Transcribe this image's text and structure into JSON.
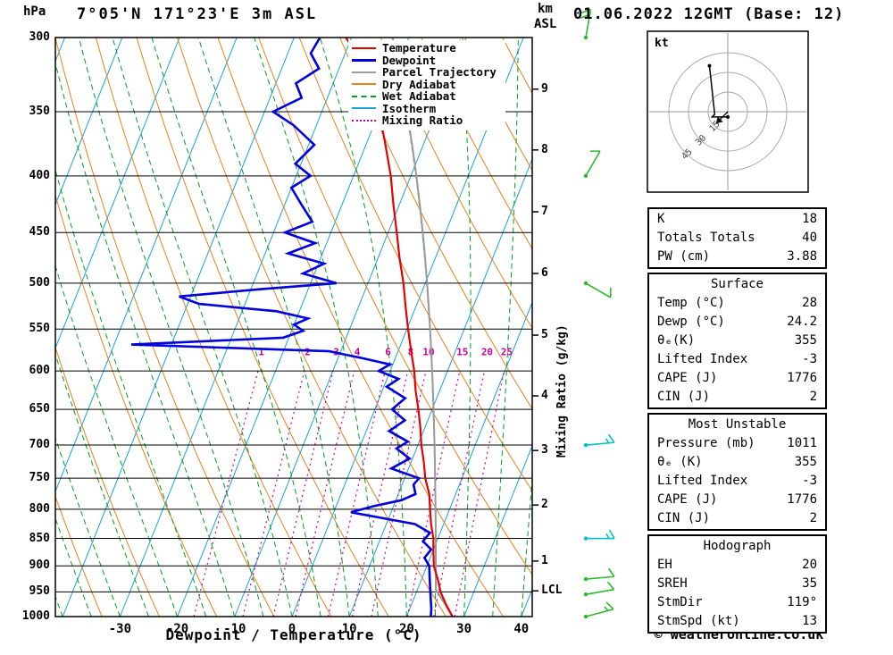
{
  "header": {
    "station_title": "7°05'N 171°23'E 3m ASL",
    "datetime_title": "01.06.2022 12GMT (Base: 12)",
    "pressure_unit": "hPa",
    "km_label": "km",
    "asl_label": "ASL"
  },
  "axes": {
    "xlabel": "Dewpoint / Temperature (°C)",
    "right_axis_label": "Mixing Ratio (g/kg)",
    "pressure_ticks": [
      300,
      350,
      400,
      450,
      500,
      550,
      600,
      650,
      700,
      750,
      800,
      850,
      900,
      950,
      1000
    ],
    "temp_ticks": [
      -30,
      -20,
      -10,
      0,
      10,
      20,
      30,
      40
    ],
    "km_ticks": [
      {
        "label": "9",
        "p": 334
      },
      {
        "label": "8",
        "p": 379
      },
      {
        "label": "7",
        "p": 431
      },
      {
        "label": "6",
        "p": 490
      },
      {
        "label": "5",
        "p": 557
      },
      {
        "label": "4",
        "p": 632
      },
      {
        "label": "3",
        "p": 708
      },
      {
        "label": "2",
        "p": 793
      },
      {
        "label": "1",
        "p": 891
      },
      {
        "label": "LCL",
        "p": 948
      }
    ]
  },
  "colors": {
    "temperature": "#e60000",
    "dewpoint": "#0000dd",
    "parcel": "#9a9a9a",
    "dry_adiabat": "#e8821e",
    "wet_adiabat": "#00a020",
    "isotherm": "#1aa3d9",
    "mixing_ratio": "#cc0099",
    "grid": "#000000"
  },
  "legend": [
    {
      "label": "Temperature",
      "color": "#e60000",
      "style": "solid",
      "width": 2
    },
    {
      "label": "Dewpoint",
      "color": "#0000dd",
      "style": "solid",
      "width": 3
    },
    {
      "label": "Parcel Trajectory",
      "color": "#9a9a9a",
      "style": "solid",
      "width": 2
    },
    {
      "label": "Dry Adiabat",
      "color": "#e8821e",
      "style": "solid",
      "width": 2
    },
    {
      "label": "Wet Adiabat",
      "color": "#00a020",
      "style": "dashed",
      "width": 2
    },
    {
      "label": "Isotherm",
      "color": "#1aa3d9",
      "style": "solid",
      "width": 2
    },
    {
      "label": "Mixing Ratio",
      "color": "#cc0099",
      "style": "dotted",
      "width": 2
    }
  ],
  "chart_data": {
    "type": "skewt-log-p sounding",
    "pressure_range_hPa": [
      300,
      1000
    ],
    "temp_axis_range_c": [
      -40,
      40
    ],
    "isotherms_c": {
      "min": -110,
      "max": 40,
      "step": 10
    },
    "dry_adiabats_theta_K": [
      230,
      240,
      250,
      260,
      270,
      280,
      290,
      300,
      310,
      320,
      330,
      340,
      350,
      360,
      370,
      380,
      390,
      400,
      410,
      420,
      430
    ],
    "wet_adiabats_start_c": [
      -40,
      -35,
      -30,
      -25,
      -20,
      -15,
      -10,
      -5,
      0,
      5,
      10,
      15,
      20,
      25,
      30,
      35,
      40
    ],
    "mixing_ratio_lines_g_kg": [
      1,
      2,
      3,
      4,
      6,
      8,
      10,
      15,
      20,
      25
    ],
    "temperature_profile": [
      [
        1000,
        28
      ],
      [
        975,
        26
      ],
      [
        950,
        24.2
      ],
      [
        925,
        22.8
      ],
      [
        900,
        21.2
      ],
      [
        875,
        20.2
      ],
      [
        850,
        19.2
      ],
      [
        825,
        17.8
      ],
      [
        800,
        16.6
      ],
      [
        775,
        15.4
      ],
      [
        750,
        13.6
      ],
      [
        725,
        12.2
      ],
      [
        700,
        10.6
      ],
      [
        675,
        9.2
      ],
      [
        650,
        7.6
      ],
      [
        625,
        5.8
      ],
      [
        600,
        4.2
      ],
      [
        575,
        2.2
      ],
      [
        550,
        0.2
      ],
      [
        525,
        -1.8
      ],
      [
        500,
        -3.8
      ],
      [
        475,
        -6.2
      ],
      [
        450,
        -8.5
      ],
      [
        425,
        -11
      ],
      [
        400,
        -13.5
      ],
      [
        375,
        -16.6
      ],
      [
        350,
        -20
      ],
      [
        340,
        -21.6
      ],
      [
        330,
        -23.2
      ],
      [
        320,
        -25.2
      ],
      [
        310,
        -28
      ],
      [
        300,
        -31
      ]
    ],
    "dewpoint_profile": [
      [
        1000,
        24.2
      ],
      [
        985,
        23.8
      ],
      [
        975,
        23.4
      ],
      [
        950,
        22.4
      ],
      [
        925,
        21.4
      ],
      [
        900,
        20.4
      ],
      [
        885,
        19
      ],
      [
        870,
        19.6
      ],
      [
        855,
        17.6
      ],
      [
        840,
        18.2
      ],
      [
        825,
        15
      ],
      [
        815,
        9
      ],
      [
        805,
        3
      ],
      [
        795,
        6.5
      ],
      [
        785,
        11
      ],
      [
        775,
        13
      ],
      [
        760,
        12
      ],
      [
        750,
        12.5
      ],
      [
        735,
        7
      ],
      [
        720,
        9.5
      ],
      [
        705,
        6.5
      ],
      [
        695,
        8
      ],
      [
        680,
        4
      ],
      [
        665,
        6
      ],
      [
        650,
        3
      ],
      [
        635,
        4.5
      ],
      [
        620,
        0.5
      ],
      [
        610,
        2
      ],
      [
        600,
        -2
      ],
      [
        592,
        -0.5
      ],
      [
        584,
        -6
      ],
      [
        576,
        -12
      ],
      [
        568,
        -47
      ],
      [
        560,
        -21
      ],
      [
        552,
        -18
      ],
      [
        545,
        -20
      ],
      [
        538,
        -18
      ],
      [
        530,
        -24
      ],
      [
        522,
        -38
      ],
      [
        514,
        -42
      ],
      [
        506,
        -28
      ],
      [
        500,
        -15.5
      ],
      [
        490,
        -22
      ],
      [
        480,
        -19
      ],
      [
        470,
        -26
      ],
      [
        460,
        -22
      ],
      [
        450,
        -28
      ],
      [
        440,
        -24
      ],
      [
        425,
        -27
      ],
      [
        410,
        -30
      ],
      [
        400,
        -27.5
      ],
      [
        390,
        -31
      ],
      [
        375,
        -29
      ],
      [
        360,
        -34
      ],
      [
        350,
        -38.5
      ],
      [
        340,
        -34.5
      ],
      [
        330,
        -36.5
      ],
      [
        320,
        -33.5
      ],
      [
        310,
        -36
      ],
      [
        300,
        -35.5
      ]
    ],
    "parcel_start": {
      "temp_c": 28,
      "dewp_c": 24.2
    },
    "wind_barbs": [
      {
        "p": 300,
        "dir": 10,
        "spd": 20,
        "color": "#2eb82e"
      },
      {
        "p": 400,
        "dir": 30,
        "spd": 10,
        "color": "#2eb82e"
      },
      {
        "p": 500,
        "dir": 120,
        "spd": 10,
        "color": "#2eb82e"
      },
      {
        "p": 700,
        "dir": 85,
        "spd": 15,
        "color": "#00c2c2"
      },
      {
        "p": 850,
        "dir": 90,
        "spd": 15,
        "color": "#00c2c2"
      },
      {
        "p": 925,
        "dir": 85,
        "spd": 10,
        "color": "#2eb82e"
      },
      {
        "p": 955,
        "dir": 80,
        "spd": 10,
        "color": "#2eb82e"
      },
      {
        "p": 1000,
        "dir": 75,
        "spd": 13,
        "color": "#2eb82e"
      }
    ]
  },
  "hodograph": {
    "unit_label": "kt",
    "rings_kt": [
      15,
      30,
      45
    ],
    "trace_uv_kt": [
      [
        0,
        -4
      ],
      [
        -12,
        -4
      ],
      [
        -10,
        -2
      ],
      [
        -14,
        35
      ]
    ],
    "storm_motion_uv_kt": [
      -9,
      -9
    ]
  },
  "table": {
    "sections": [
      {
        "title": "",
        "rows": [
          [
            "K",
            "18"
          ],
          [
            "Totals Totals",
            "40"
          ],
          [
            "PW (cm)",
            "3.88"
          ]
        ]
      },
      {
        "title": "Surface",
        "rows": [
          [
            "Temp (°C)",
            "28"
          ],
          [
            "Dewp (°C)",
            "24.2"
          ],
          [
            "θₑ(K)",
            "355"
          ],
          [
            "Lifted Index",
            "-3"
          ],
          [
            "CAPE (J)",
            "1776"
          ],
          [
            "CIN (J)",
            "2"
          ]
        ]
      },
      {
        "title": "Most Unstable",
        "rows": [
          [
            "Pressure (mb)",
            "1011"
          ],
          [
            "θₑ (K)",
            "355"
          ],
          [
            "Lifted Index",
            "-3"
          ],
          [
            "CAPE (J)",
            "1776"
          ],
          [
            "CIN (J)",
            "2"
          ]
        ]
      },
      {
        "title": "Hodograph",
        "rows": [
          [
            "EH",
            "20"
          ],
          [
            "SREH",
            "35"
          ],
          [
            "StmDir",
            "119°"
          ],
          [
            "StmSpd (kt)",
            "13"
          ]
        ]
      }
    ]
  },
  "footer": {
    "copyright": "© weatheronline.co.uk"
  }
}
